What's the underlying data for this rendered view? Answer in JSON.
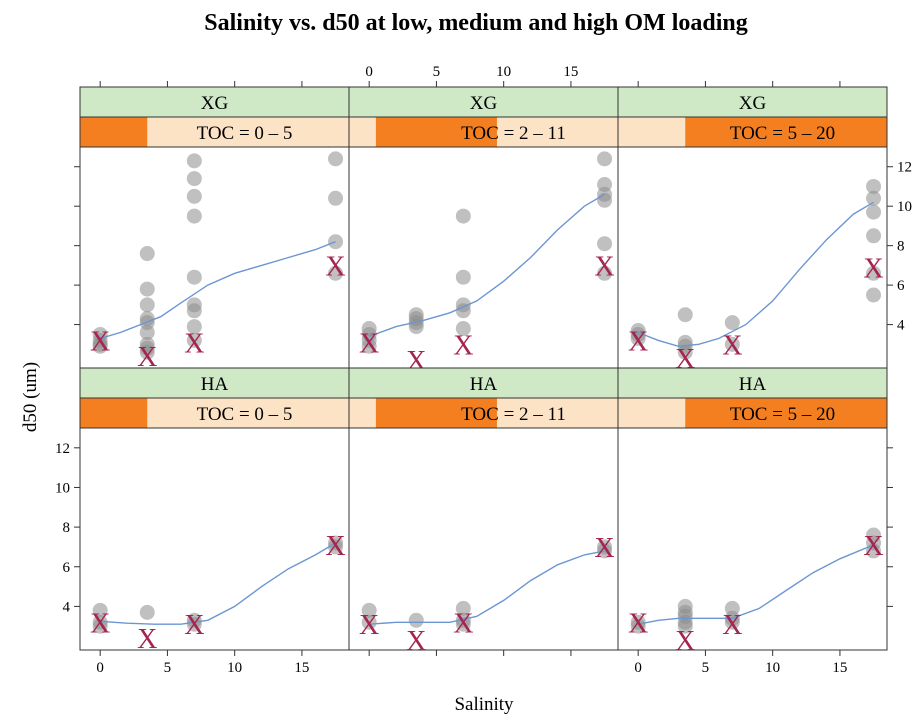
{
  "chart_data": {
    "type": "scatter",
    "title": "Salinity vs. d50 at low, medium and high OM loading",
    "xlabel": "Salinity",
    "ylabel": "d50 (um)",
    "xlim": [
      -1.5,
      18.5
    ],
    "ylim": [
      1.8,
      13.0
    ],
    "x_ticks": [
      0,
      5,
      10,
      15
    ],
    "y_ticks": [
      4,
      6,
      8,
      10,
      12
    ],
    "colors": {
      "strip_top": "#cfe8c6",
      "strip_bottom_bg": "#fde3c6",
      "strip_bottom_fill": "#f47f20",
      "points": "#8c8c8c",
      "smooth_line": "#6c96d2",
      "x_marker": "#a52451",
      "grid_border": "#333333"
    },
    "panels": [
      {
        "polymer": "XG",
        "toc_label": "TOC = 0 – 5",
        "toc_range": [
          0,
          5
        ],
        "points": [
          [
            0,
            3.0
          ],
          [
            0,
            3.2
          ],
          [
            0,
            3.5
          ],
          [
            0,
            2.9
          ],
          [
            3.5,
            7.6
          ],
          [
            3.5,
            5.8
          ],
          [
            3.5,
            5.0
          ],
          [
            3.5,
            4.3
          ],
          [
            3.5,
            4.1
          ],
          [
            3.5,
            3.6
          ],
          [
            3.5,
            3.0
          ],
          [
            3.5,
            2.8
          ],
          [
            3.5,
            2.6
          ],
          [
            7,
            12.3
          ],
          [
            7,
            11.4
          ],
          [
            7,
            10.5
          ],
          [
            7,
            9.5
          ],
          [
            7,
            6.4
          ],
          [
            7,
            5.0
          ],
          [
            7,
            4.7
          ],
          [
            7,
            3.9
          ],
          [
            7,
            3.2
          ],
          [
            17.5,
            12.4
          ],
          [
            17.5,
            10.4
          ],
          [
            17.5,
            8.2
          ],
          [
            17.5,
            6.6
          ]
        ],
        "means": [
          [
            0,
            3.2
          ],
          [
            3.5,
            2.4
          ],
          [
            7,
            3.1
          ],
          [
            17.5,
            7.0
          ]
        ],
        "smooth": [
          [
            0,
            3.3
          ],
          [
            1.5,
            3.6
          ],
          [
            3,
            4.0
          ],
          [
            4.5,
            4.4
          ],
          [
            6,
            5.1
          ],
          [
            8,
            6.0
          ],
          [
            10,
            6.6
          ],
          [
            12,
            7.0
          ],
          [
            14,
            7.4
          ],
          [
            16,
            7.8
          ],
          [
            17.5,
            8.2
          ]
        ]
      },
      {
        "polymer": "XG",
        "toc_label": "TOC = 2 – 11",
        "toc_range": [
          2,
          11
        ],
        "points": [
          [
            0,
            3.8
          ],
          [
            0,
            3.5
          ],
          [
            0,
            3.2
          ],
          [
            0,
            2.9
          ],
          [
            3.5,
            4.5
          ],
          [
            3.5,
            4.3
          ],
          [
            3.5,
            4.1
          ],
          [
            3.5,
            3.9
          ],
          [
            7,
            9.5
          ],
          [
            7,
            6.4
          ],
          [
            7,
            5.0
          ],
          [
            7,
            4.7
          ],
          [
            7,
            3.8
          ],
          [
            17.5,
            12.4
          ],
          [
            17.5,
            11.1
          ],
          [
            17.5,
            10.6
          ],
          [
            17.5,
            10.3
          ],
          [
            17.5,
            8.1
          ],
          [
            17.5,
            6.6
          ]
        ],
        "means": [
          [
            0,
            3.1
          ],
          [
            3.5,
            2.2
          ],
          [
            7,
            3.0
          ],
          [
            17.5,
            7.0
          ]
        ],
        "smooth": [
          [
            0,
            3.4
          ],
          [
            2,
            3.9
          ],
          [
            4,
            4.2
          ],
          [
            6,
            4.6
          ],
          [
            8,
            5.2
          ],
          [
            10,
            6.2
          ],
          [
            12,
            7.4
          ],
          [
            14,
            8.8
          ],
          [
            16,
            10.0
          ],
          [
            17.5,
            10.6
          ]
        ]
      },
      {
        "polymer": "XG",
        "toc_label": "TOC = 5 – 20",
        "toc_range": [
          5,
          20
        ],
        "points": [
          [
            0,
            3.7
          ],
          [
            0,
            3.5
          ],
          [
            0,
            3.3
          ],
          [
            3.5,
            4.5
          ],
          [
            3.5,
            3.1
          ],
          [
            3.5,
            2.9
          ],
          [
            3.5,
            2.6
          ],
          [
            7,
            4.1
          ],
          [
            7,
            3.0
          ],
          [
            17.5,
            11.0
          ],
          [
            17.5,
            10.4
          ],
          [
            17.5,
            9.7
          ],
          [
            17.5,
            8.5
          ],
          [
            17.5,
            6.6
          ],
          [
            17.5,
            5.5
          ]
        ],
        "means": [
          [
            0,
            3.2
          ],
          [
            3.5,
            2.3
          ],
          [
            7,
            3.0
          ],
          [
            17.5,
            6.9
          ]
        ],
        "smooth": [
          [
            0,
            3.6
          ],
          [
            1.5,
            3.2
          ],
          [
            3,
            2.9
          ],
          [
            4.5,
            3.0
          ],
          [
            6,
            3.3
          ],
          [
            8,
            4.0
          ],
          [
            10,
            5.2
          ],
          [
            12,
            6.8
          ],
          [
            14,
            8.3
          ],
          [
            16,
            9.6
          ],
          [
            17.5,
            10.2
          ]
        ]
      },
      {
        "polymer": "HA",
        "toc_label": "TOC = 0 – 5",
        "toc_range": [
          0,
          5
        ],
        "points": [
          [
            0,
            3.8
          ],
          [
            0,
            3.2
          ],
          [
            0,
            3.0
          ],
          [
            3.5,
            3.7
          ],
          [
            7,
            3.3
          ],
          [
            7,
            3.1
          ],
          [
            17.5,
            7.2
          ],
          [
            17.5,
            7.0
          ]
        ],
        "means": [
          [
            0,
            3.2
          ],
          [
            3.5,
            2.4
          ],
          [
            7,
            3.1
          ],
          [
            17.5,
            7.1
          ]
        ],
        "smooth": [
          [
            0,
            3.25
          ],
          [
            2,
            3.15
          ],
          [
            4,
            3.1
          ],
          [
            6,
            3.1
          ],
          [
            8,
            3.3
          ],
          [
            10,
            4.0
          ],
          [
            12,
            5.0
          ],
          [
            14,
            5.9
          ],
          [
            16,
            6.6
          ],
          [
            17.5,
            7.2
          ]
        ]
      },
      {
        "polymer": "HA",
        "toc_label": "TOC = 2 – 11",
        "toc_range": [
          2,
          11
        ],
        "points": [
          [
            0,
            3.8
          ],
          [
            0,
            3.2
          ],
          [
            3.5,
            3.3
          ],
          [
            7,
            3.9
          ],
          [
            7,
            3.3
          ],
          [
            7,
            3.1
          ],
          [
            17.5,
            7.0
          ],
          [
            17.5,
            6.8
          ]
        ],
        "means": [
          [
            0,
            3.1
          ],
          [
            3.5,
            2.3
          ],
          [
            7,
            3.2
          ],
          [
            17.5,
            7.0
          ]
        ],
        "smooth": [
          [
            0,
            3.1
          ],
          [
            2,
            3.2
          ],
          [
            4,
            3.2
          ],
          [
            6,
            3.2
          ],
          [
            8,
            3.5
          ],
          [
            10,
            4.3
          ],
          [
            12,
            5.3
          ],
          [
            14,
            6.1
          ],
          [
            16,
            6.6
          ],
          [
            17.5,
            6.8
          ]
        ]
      },
      {
        "polymer": "HA",
        "toc_label": "TOC = 5 – 20",
        "toc_range": [
          5,
          20
        ],
        "points": [
          [
            0,
            3.2
          ],
          [
            0,
            3.0
          ],
          [
            3.5,
            4.0
          ],
          [
            3.5,
            3.7
          ],
          [
            3.5,
            3.5
          ],
          [
            3.5,
            3.2
          ],
          [
            3.5,
            3.0
          ],
          [
            7,
            3.9
          ],
          [
            7,
            3.4
          ],
          [
            7,
            3.2
          ],
          [
            17.5,
            7.6
          ],
          [
            17.5,
            7.2
          ],
          [
            17.5,
            6.8
          ]
        ],
        "means": [
          [
            0,
            3.2
          ],
          [
            3.5,
            2.3
          ],
          [
            7,
            3.1
          ],
          [
            17.5,
            7.1
          ]
        ],
        "smooth": [
          [
            0,
            3.1
          ],
          [
            1.5,
            3.3
          ],
          [
            3,
            3.4
          ],
          [
            5,
            3.4
          ],
          [
            7,
            3.4
          ],
          [
            9,
            3.9
          ],
          [
            11,
            4.8
          ],
          [
            13,
            5.7
          ],
          [
            15,
            6.4
          ],
          [
            17.5,
            7.1
          ]
        ]
      }
    ]
  }
}
